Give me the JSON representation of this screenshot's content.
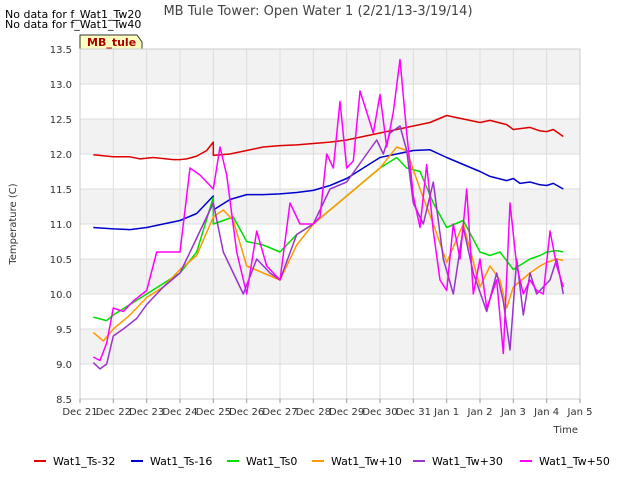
{
  "no_data_lines": [
    "No data for f_Wat1_Tw20",
    "No data for f_Wat1_Tw40"
  ],
  "badge": "MB_tule",
  "chart_data": {
    "type": "line",
    "title": "MB Tule Tower: Open Water 1 (2/21/13-3/19/14)",
    "xlabel": "Time",
    "ylabel": "Temperature (C)",
    "ylim": [
      8.5,
      13.5
    ],
    "xlim": [
      0,
      15
    ],
    "x_tick_labels": [
      "Dec 21",
      "Dec 22",
      "Dec 23",
      "Dec 24",
      "Dec 25",
      "Dec 26",
      "Dec 27",
      "Dec 28",
      "Dec 29",
      "Dec 30",
      "Dec 31",
      "Jan 1",
      "Jan 2",
      "Jan 3",
      "Jan 4",
      "Jan 5"
    ],
    "y_ticks": [
      8.5,
      9.0,
      9.5,
      10.0,
      10.5,
      11.0,
      11.5,
      12.0,
      12.5,
      13.0,
      13.5
    ],
    "y_tick_labels": [
      "8.5",
      "9.0",
      "9.5",
      "10.0",
      "10.5",
      "11.0",
      "11.5",
      "12.0",
      "12.5",
      "13.0",
      "13.5"
    ],
    "grid": true,
    "legend_position": "bottom",
    "series": [
      {
        "name": "Wat1_Ts-32",
        "color": "#dd0000",
        "x": [
          0.4,
          1.0,
          1.5,
          1.8,
          2.2,
          2.8,
          3.0,
          3.2,
          3.5,
          3.8,
          4.0,
          4.0,
          4.5,
          5.0,
          5.5,
          6.0,
          6.5,
          7.0,
          7.5,
          8.0,
          8.5,
          9.0,
          9.5,
          10.0,
          10.5,
          11.0,
          11.5,
          12.0,
          12.3,
          12.8,
          13.0,
          13.5,
          13.8,
          14.0,
          14.2,
          14.5
        ],
        "values": [
          11.99,
          11.96,
          11.96,
          11.93,
          11.95,
          11.92,
          11.92,
          11.93,
          11.97,
          12.05,
          12.17,
          11.98,
          12.0,
          12.05,
          12.1,
          12.12,
          12.13,
          12.15,
          12.17,
          12.2,
          12.25,
          12.3,
          12.35,
          12.4,
          12.45,
          12.55,
          12.5,
          12.45,
          12.48,
          12.42,
          12.35,
          12.38,
          12.33,
          12.32,
          12.35,
          12.25
        ]
      },
      {
        "name": "Wat1_Ts-16",
        "color": "#0000cc",
        "x": [
          0.4,
          1.0,
          1.5,
          2.0,
          2.5,
          3.0,
          3.5,
          4.0,
          4.0,
          4.5,
          5.0,
          5.5,
          6.0,
          6.5,
          7.0,
          7.5,
          8.0,
          8.5,
          9.0,
          9.5,
          10.0,
          10.5,
          11.0,
          11.5,
          12.0,
          12.3,
          12.8,
          13.0,
          13.2,
          13.5,
          13.8,
          14.0,
          14.2,
          14.5
        ],
        "values": [
          10.95,
          10.93,
          10.92,
          10.95,
          11.0,
          11.05,
          11.15,
          11.4,
          11.2,
          11.35,
          11.42,
          11.42,
          11.43,
          11.45,
          11.48,
          11.55,
          11.65,
          11.8,
          11.95,
          12.0,
          12.05,
          12.06,
          11.95,
          11.85,
          11.75,
          11.68,
          11.62,
          11.65,
          11.58,
          11.6,
          11.56,
          11.55,
          11.58,
          11.5
        ]
      },
      {
        "name": "Wat1_Ts0",
        "color": "#00dd00",
        "x": [
          0.4,
          0.8,
          1.0,
          1.5,
          2.0,
          2.5,
          3.0,
          3.5,
          4.0,
          4.0,
          4.3,
          4.6,
          5.0,
          5.5,
          6.0,
          6.5,
          7.0,
          7.5,
          8.0,
          8.5,
          9.0,
          9.5,
          9.8,
          10.2,
          10.6,
          11.0,
          11.5,
          12.0,
          12.3,
          12.6,
          13.0,
          13.5,
          13.8,
          14.0,
          14.3,
          14.5
        ],
        "values": [
          9.67,
          9.62,
          9.7,
          9.85,
          10.0,
          10.15,
          10.3,
          10.6,
          11.38,
          11.0,
          11.05,
          11.1,
          10.75,
          10.7,
          10.6,
          10.85,
          11.0,
          11.2,
          11.4,
          11.6,
          11.8,
          11.95,
          11.8,
          11.75,
          11.3,
          10.95,
          11.05,
          10.6,
          10.55,
          10.6,
          10.35,
          10.5,
          10.55,
          10.6,
          10.62,
          10.6
        ]
      },
      {
        "name": "Wat1_Tw+10",
        "color": "#ff9900",
        "x": [
          0.4,
          0.7,
          1.0,
          1.5,
          2.0,
          2.5,
          3.0,
          3.5,
          4.0,
          4.3,
          4.6,
          5.0,
          5.5,
          6.0,
          6.5,
          7.0,
          7.5,
          8.0,
          8.5,
          9.0,
          9.5,
          9.8,
          10.2,
          10.6,
          11.0,
          11.5,
          12.0,
          12.3,
          12.6,
          12.8,
          13.0,
          13.5,
          13.8,
          14.0,
          14.3,
          14.5
        ],
        "values": [
          9.45,
          9.33,
          9.5,
          9.7,
          9.95,
          10.1,
          10.35,
          10.55,
          11.1,
          11.2,
          11.05,
          10.4,
          10.3,
          10.2,
          10.7,
          11.0,
          11.2,
          11.4,
          11.6,
          11.8,
          12.1,
          12.05,
          11.5,
          11.0,
          10.45,
          11.0,
          10.1,
          10.4,
          10.2,
          9.8,
          10.1,
          10.3,
          10.4,
          10.45,
          10.5,
          10.48
        ]
      },
      {
        "name": "Wat1_Tw+30",
        "color": "#9933cc",
        "x": [
          0.4,
          0.6,
          0.8,
          1.0,
          1.3,
          1.7,
          2.0,
          2.5,
          3.0,
          3.5,
          4.0,
          4.3,
          4.6,
          4.9,
          5.3,
          5.7,
          6.0,
          6.5,
          7.0,
          7.5,
          8.0,
          8.3,
          8.6,
          8.9,
          9.1,
          9.3,
          9.6,
          9.8,
          10.0,
          10.3,
          10.6,
          10.9,
          11.2,
          11.5,
          11.8,
          12.2,
          12.5,
          12.7,
          12.9,
          13.1,
          13.3,
          13.5,
          13.7,
          13.9,
          14.1,
          14.3,
          14.5
        ],
        "values": [
          9.02,
          8.93,
          9.0,
          9.4,
          9.5,
          9.65,
          9.85,
          10.1,
          10.3,
          10.8,
          11.3,
          10.6,
          10.3,
          10.0,
          10.5,
          10.3,
          10.2,
          10.85,
          11.0,
          11.5,
          11.6,
          11.8,
          12.0,
          12.2,
          12.0,
          12.3,
          12.4,
          12.05,
          11.3,
          11.0,
          11.6,
          10.5,
          10.0,
          10.95,
          10.3,
          9.75,
          10.3,
          9.9,
          9.2,
          10.5,
          9.7,
          10.3,
          10.0,
          10.1,
          10.2,
          10.5,
          10.0
        ]
      },
      {
        "name": "Wat1_Tw+50",
        "color": "#ff00ff",
        "x": [
          0.4,
          0.6,
          0.8,
          1.0,
          1.3,
          1.6,
          2.0,
          2.3,
          2.6,
          3.0,
          3.3,
          3.6,
          4.0,
          4.2,
          4.4,
          4.7,
          5.0,
          5.3,
          5.6,
          6.0,
          6.3,
          6.6,
          7.0,
          7.2,
          7.4,
          7.6,
          7.8,
          8.0,
          8.2,
          8.4,
          8.6,
          8.8,
          9.0,
          9.2,
          9.4,
          9.6,
          9.8,
          10.0,
          10.2,
          10.4,
          10.6,
          10.8,
          11.0,
          11.2,
          11.4,
          11.6,
          11.8,
          12.0,
          12.2,
          12.5,
          12.7,
          12.9,
          13.1,
          13.3,
          13.5,
          13.7,
          13.9,
          14.1,
          14.3,
          14.5
        ],
        "values": [
          9.1,
          9.05,
          9.3,
          9.8,
          9.75,
          9.9,
          10.05,
          10.6,
          10.6,
          10.6,
          11.8,
          11.7,
          11.5,
          12.1,
          11.7,
          10.6,
          10.0,
          10.9,
          10.4,
          10.2,
          11.3,
          11.0,
          11.0,
          11.1,
          12.0,
          11.8,
          12.75,
          11.8,
          11.9,
          12.9,
          12.6,
          12.3,
          12.85,
          12.1,
          12.6,
          13.35,
          12.3,
          11.4,
          10.95,
          11.85,
          10.9,
          10.2,
          10.05,
          11.0,
          10.5,
          11.5,
          10.0,
          10.5,
          9.8,
          10.2,
          9.15,
          11.3,
          10.4,
          10.0,
          10.2,
          10.05,
          10.0,
          10.9,
          10.4,
          10.1
        ]
      }
    ]
  }
}
